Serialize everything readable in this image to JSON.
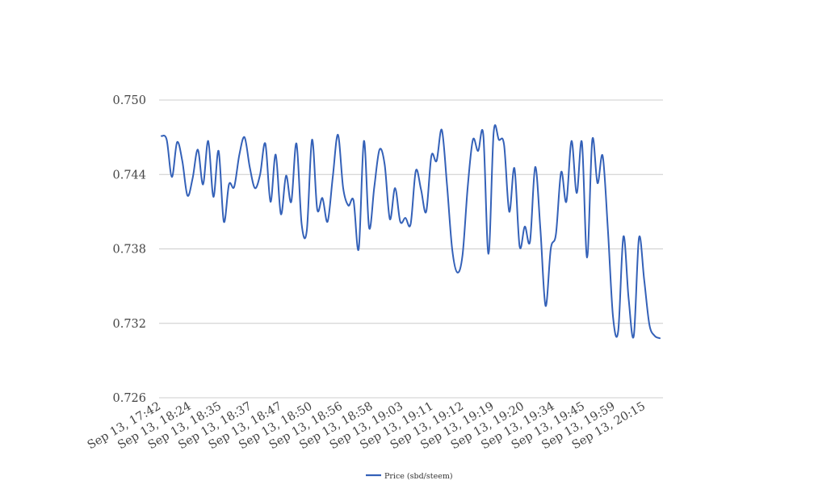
{
  "chart_data": {
    "type": "line",
    "title": "",
    "xlabel": "",
    "ylabel": "",
    "ylim": [
      0.726,
      0.75
    ],
    "y_ticks": [
      "0.750",
      "0.744",
      "0.738",
      "0.732",
      "0.726"
    ],
    "x_ticks": [
      "Sep 13, 17:42",
      "Sep 13, 18:24",
      "Sep 13, 18:35",
      "Sep 13, 18:37",
      "Sep 13, 18:47",
      "Sep 13, 18:50",
      "Sep 13, 18:56",
      "Sep 13, 18:58",
      "Sep 13, 19:03",
      "Sep 13, 19:11",
      "Sep 13, 19:12",
      "Sep 13, 19:19",
      "Sep 13, 19:20",
      "Sep 13, 19:34",
      "Sep 13, 19:45",
      "Sep 13, 19:59",
      "Sep 13, 20:15"
    ],
    "grid": true,
    "legend_position": "bottom",
    "series": [
      {
        "name": "Price (sbd/steem)",
        "color": "#3461b8",
        "values": [
          0.7471,
          0.7468,
          0.7438,
          0.7466,
          0.7451,
          0.7423,
          0.7437,
          0.746,
          0.7432,
          0.7467,
          0.7422,
          0.7459,
          0.7402,
          0.7432,
          0.743,
          0.7456,
          0.747,
          0.7446,
          0.7429,
          0.744,
          0.7465,
          0.7418,
          0.7456,
          0.7408,
          0.7439,
          0.7418,
          0.7465,
          0.74,
          0.7395,
          0.7468,
          0.7412,
          0.7421,
          0.7402,
          0.7438,
          0.7472,
          0.7429,
          0.7415,
          0.7419,
          0.738,
          0.7467,
          0.7397,
          0.743,
          0.746,
          0.7448,
          0.7404,
          0.7429,
          0.7402,
          0.7405,
          0.74,
          0.7443,
          0.7428,
          0.741,
          0.7455,
          0.7451,
          0.7476,
          0.7432,
          0.738,
          0.7361,
          0.7375,
          0.743,
          0.7468,
          0.7459,
          0.7472,
          0.7376,
          0.7474,
          0.7468,
          0.7464,
          0.741,
          0.7445,
          0.7382,
          0.7398,
          0.7386,
          0.7446,
          0.7396,
          0.7334,
          0.738,
          0.7392,
          0.7442,
          0.7418,
          0.7467,
          0.7425,
          0.7466,
          0.7373,
          0.7468,
          0.7433,
          0.7455,
          0.7396,
          0.7325,
          0.7314,
          0.739,
          0.734,
          0.731,
          0.7389,
          0.7355,
          0.7319,
          0.731,
          0.7308
        ]
      }
    ]
  }
}
